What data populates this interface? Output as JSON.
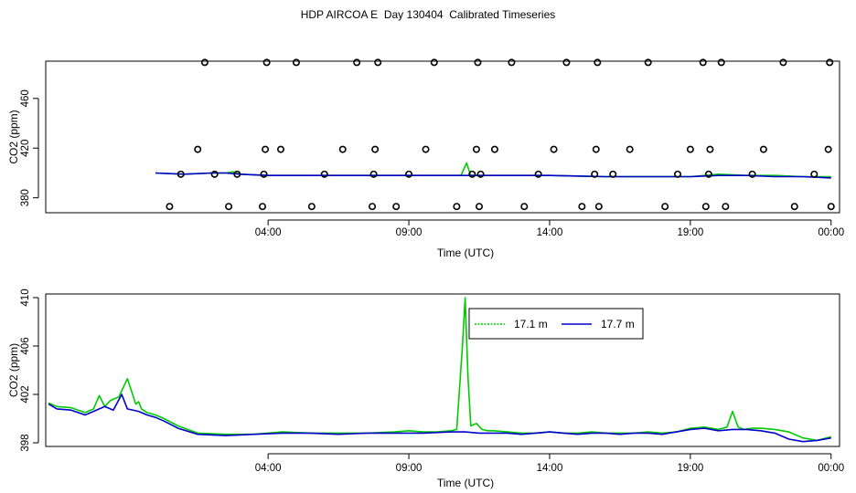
{
  "title": "HDP AIRCOA E  Day 130404  Calibrated Timeseries",
  "colors": {
    "green": "#00cc00",
    "blue": "#0000cc",
    "markers": "#000000"
  },
  "chart_data": [
    {
      "type": "line",
      "xlabel": "Time (UTC)",
      "ylabel": "CO2 (ppm)",
      "xlim": [
        -3.9,
        24.3
      ],
      "ylim": [
        368,
        490
      ],
      "xticks": [
        4,
        9,
        14,
        19,
        24
      ],
      "xtick_labels": [
        "04:00",
        "09:00",
        "14:00",
        "19:00",
        "00:00"
      ],
      "yticks": [
        380,
        420,
        460
      ],
      "yticklabels": [
        "380",
        "420",
        "460"
      ],
      "series": [
        {
          "color": "#00cc00",
          "x": [
            0.0,
            1.0,
            2.0,
            2.5,
            2.75,
            3.0,
            4.0,
            5.0,
            6.0,
            7.0,
            8.0,
            9.0,
            10.0,
            10.85,
            11.05,
            11.2,
            11.5,
            12.0,
            14.0,
            16.0,
            18.0,
            19.0,
            20.0,
            21.0,
            22.0,
            23.0,
            24.0
          ],
          "values": [
            400,
            399,
            400,
            400,
            401,
            399,
            398,
            398,
            398,
            398,
            398,
            398,
            398,
            398,
            408,
            398,
            398,
            398,
            398,
            397,
            397,
            397,
            399,
            398,
            398,
            397,
            397
          ]
        },
        {
          "color": "#0000cc",
          "x": [
            0.0,
            1.0,
            2.0,
            2.5,
            3.0,
            4.0,
            5.0,
            6.0,
            8.0,
            10.0,
            12.0,
            14.0,
            16.0,
            18.0,
            19.0,
            20.0,
            21.0,
            22.0,
            23.0,
            24.0
          ],
          "values": [
            400,
            399,
            400,
            400,
            399,
            398,
            398,
            398,
            398,
            398,
            398,
            398,
            397,
            397,
            397,
            398,
            398,
            397,
            397,
            396
          ]
        }
      ],
      "markers": {
        "x": [
          0.5,
          0.9,
          1.5,
          1.75,
          2.1,
          2.6,
          2.9,
          3.8,
          3.85,
          3.9,
          3.95,
          4.45,
          5.0,
          5.55,
          6.0,
          6.65,
          7.15,
          7.7,
          7.75,
          7.8,
          7.9,
          8.55,
          9.0,
          9.6,
          9.9,
          10.7,
          11.25,
          11.4,
          11.45,
          11.5,
          11.55,
          12.05,
          12.65,
          13.1,
          13.6,
          14.15,
          14.6,
          15.15,
          15.6,
          15.65,
          15.7,
          15.75,
          16.25,
          16.85,
          17.5,
          18.1,
          18.55,
          19.0,
          19.45,
          19.55,
          19.65,
          19.7,
          20.1,
          20.25,
          21.2,
          21.6,
          22.3,
          22.7,
          23.4,
          23.9,
          23.95,
          24.0
        ],
        "values": [
          373,
          399,
          419,
          489,
          399,
          373,
          399,
          373,
          399,
          419,
          489,
          419,
          489,
          373,
          399,
          419,
          489,
          373,
          399,
          419,
          489,
          373,
          399,
          419,
          489,
          373,
          399,
          419,
          489,
          373,
          399,
          419,
          489,
          373,
          399,
          419,
          489,
          373,
          399,
          419,
          489,
          373,
          399,
          419,
          489,
          373,
          399,
          419,
          489,
          373,
          399,
          419,
          489,
          373,
          399,
          419,
          489,
          373,
          399,
          419,
          489,
          373
        ]
      }
    },
    {
      "type": "line",
      "xlabel": "Time (UTC)",
      "ylabel": "CO2 (ppm)",
      "xlim": [
        -3.9,
        24.3
      ],
      "ylim": [
        397.7,
        410.3
      ],
      "xticks": [
        4,
        9,
        14,
        19,
        24
      ],
      "xtick_labels": [
        "04:00",
        "09:00",
        "14:00",
        "19:00",
        "00:00"
      ],
      "yticks": [
        398,
        402,
        406,
        410
      ],
      "yticklabels": [
        "398",
        "402",
        "406",
        "410"
      ],
      "legend": {
        "position": "top-right",
        "entries": [
          "17.1 m",
          "17.7 m"
        ]
      },
      "series": [
        {
          "name": "17.1 m",
          "color": "#00cc00",
          "x": [
            -3.8,
            -3.5,
            -3.0,
            -2.5,
            -2.2,
            -2.0,
            -1.8,
            -1.6,
            -1.3,
            -1.0,
            -0.7,
            -0.6,
            -0.5,
            -0.3,
            0.0,
            0.3,
            0.8,
            1.5,
            2.5,
            3.5,
            4.5,
            5.5,
            6.5,
            7.5,
            8.5,
            9.0,
            9.5,
            10.0,
            10.5,
            10.7,
            10.9,
            11.0,
            11.1,
            11.2,
            11.4,
            11.6,
            11.8,
            12.0,
            12.5,
            13.0,
            13.5,
            14.0,
            14.5,
            15.0,
            15.5,
            16.0,
            16.5,
            17.0,
            17.5,
            18.0,
            18.5,
            19.0,
            19.5,
            20.0,
            20.3,
            20.5,
            20.7,
            20.9,
            21.2,
            21.5,
            22.0,
            22.5,
            23.0,
            23.5,
            24.0
          ],
          "values": [
            401.3,
            401.0,
            400.9,
            400.5,
            400.8,
            401.9,
            401.0,
            401.5,
            401.8,
            403.3,
            401.2,
            401.4,
            400.8,
            400.5,
            400.3,
            400.0,
            399.4,
            398.8,
            398.7,
            398.7,
            398.9,
            398.8,
            398.8,
            398.8,
            398.9,
            399.0,
            398.9,
            398.9,
            399.0,
            399.1,
            405.8,
            410.0,
            403.5,
            399.4,
            399.6,
            399.1,
            399.0,
            399.0,
            398.9,
            398.8,
            398.8,
            398.9,
            398.8,
            398.8,
            398.9,
            398.8,
            398.8,
            398.8,
            398.9,
            398.8,
            398.9,
            399.2,
            399.3,
            399.1,
            399.3,
            400.6,
            399.3,
            399.1,
            399.2,
            399.2,
            399.1,
            398.9,
            398.4,
            398.2,
            398.5
          ]
        },
        {
          "name": "17.7 m",
          "color": "#0000cc",
          "x": [
            -3.8,
            -3.5,
            -3.0,
            -2.5,
            -2.2,
            -2.0,
            -1.8,
            -1.5,
            -1.2,
            -1.0,
            -0.6,
            -0.3,
            0.0,
            0.3,
            0.8,
            1.5,
            2.5,
            3.5,
            4.5,
            5.5,
            6.5,
            7.5,
            8.5,
            9.5,
            10.5,
            11.0,
            11.5,
            12.0,
            12.5,
            13.0,
            13.5,
            14.0,
            14.5,
            15.0,
            15.5,
            16.0,
            16.5,
            17.0,
            17.5,
            18.0,
            18.5,
            19.0,
            19.5,
            20.0,
            20.5,
            21.0,
            21.5,
            22.0,
            22.5,
            23.0,
            23.5,
            24.0
          ],
          "values": [
            401.2,
            400.8,
            400.7,
            400.3,
            400.6,
            400.8,
            401.0,
            400.7,
            402.0,
            400.8,
            400.6,
            400.3,
            400.1,
            399.8,
            399.2,
            398.7,
            398.6,
            398.7,
            398.8,
            398.8,
            398.7,
            398.8,
            398.8,
            398.8,
            398.9,
            398.9,
            398.8,
            398.8,
            398.8,
            398.7,
            398.8,
            398.9,
            398.8,
            398.7,
            398.8,
            398.8,
            398.7,
            398.8,
            398.8,
            398.7,
            398.9,
            399.1,
            399.2,
            399.0,
            399.1,
            399.1,
            399.0,
            398.8,
            398.3,
            398.1,
            398.2,
            398.4
          ]
        }
      ]
    }
  ]
}
